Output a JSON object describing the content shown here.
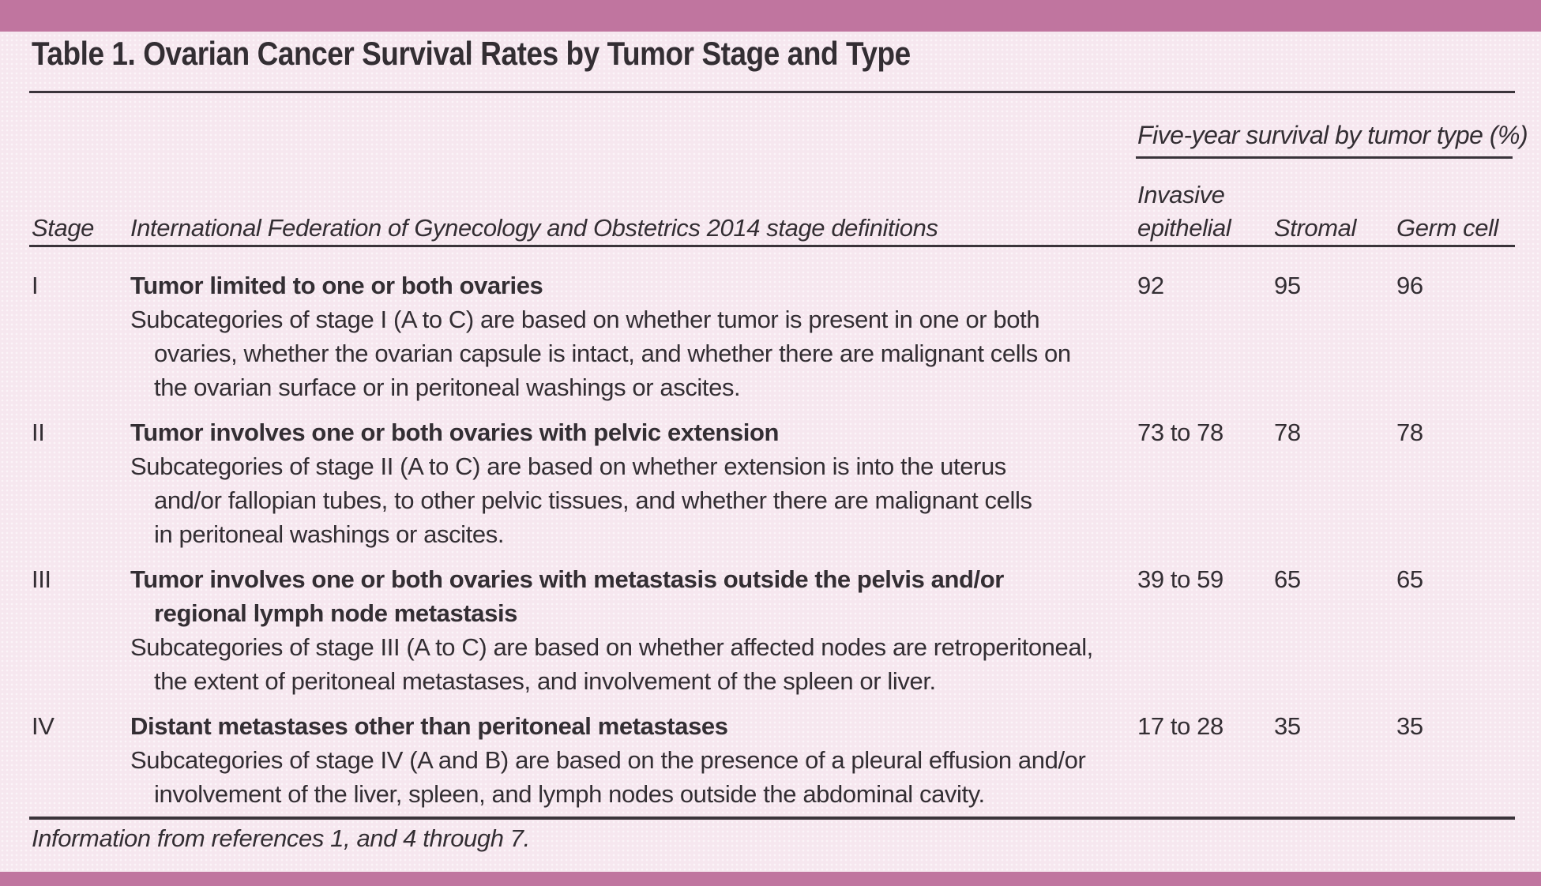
{
  "page": {
    "title": "Table 1. Ovarian Cancer Survival Rates by Tumor Stage and Type",
    "footnote": "Information from references 1, and 4 through 7.",
    "colors": {
      "accent_bar": "#c0759f",
      "background": "#f6e7ef",
      "text": "#332e33",
      "rule": "#3a343a"
    }
  },
  "table": {
    "spanner": "Five-year survival by tumor type (%)",
    "columns": {
      "stage": "Stage",
      "definitions": "International Federation of Gynecology and Obstetrics 2014 stage definitions",
      "invasive": [
        "Invasive",
        "epithelial"
      ],
      "stromal": "Stromal",
      "germ": "Germ cell"
    },
    "rows": [
      {
        "stage": "I",
        "definition": [
          "Tumor limited to one or both ovaries"
        ],
        "detail": [
          "Subcategories of stage I (A to C) are based on whether tumor is present in one or both",
          "ovaries, whether the ovarian capsule is intact, and whether there are malignant cells on",
          "the ovarian surface or in peritoneal washings or ascites."
        ],
        "invasive": "92",
        "stromal": "95",
        "germ": "96"
      },
      {
        "stage": "II",
        "definition": [
          "Tumor involves one or both ovaries with pelvic extension"
        ],
        "detail": [
          "Subcategories of stage II (A to C) are based on whether extension is into the uterus",
          "and/or fallopian tubes, to other pelvic tissues, and whether there are malignant cells",
          "in peritoneal washings or ascites."
        ],
        "invasive": "73 to 78",
        "stromal": "78",
        "germ": "78"
      },
      {
        "stage": "III",
        "definition": [
          "Tumor involves one or both ovaries with metastasis outside the pelvis and/or",
          "regional lymph node metastasis"
        ],
        "detail": [
          "Subcategories of stage III (A to C) are based on whether affected nodes are retroperitoneal,",
          "the extent of peritoneal metastases, and involvement of the spleen or liver."
        ],
        "invasive": "39 to 59",
        "stromal": "65",
        "germ": "65"
      },
      {
        "stage": "IV",
        "definition": [
          "Distant metastases other than peritoneal metastases"
        ],
        "detail": [
          "Subcategories of stage IV (A and B) are based on the presence of a pleural effusion and/or",
          "involvement of the liver, spleen, and lymph nodes outside the abdominal cavity."
        ],
        "invasive": "17 to 28",
        "stromal": "35",
        "germ": "35"
      }
    ]
  }
}
